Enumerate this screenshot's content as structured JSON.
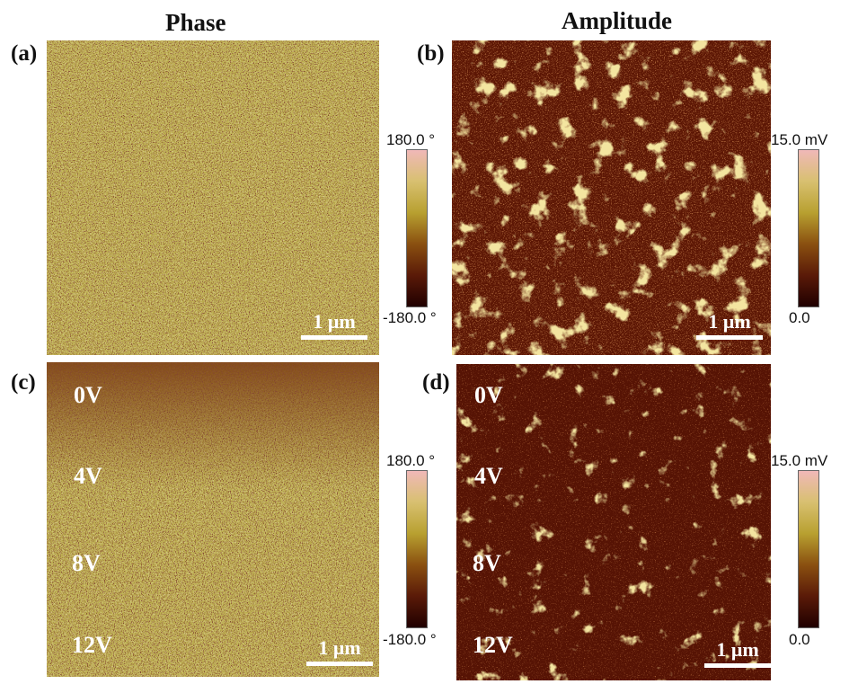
{
  "columns": {
    "phase_title": "Phase",
    "amplitude_title": "Amplitude"
  },
  "panels": {
    "a": {
      "label": "(a)",
      "scale": "1 μm"
    },
    "b": {
      "label": "(b)",
      "scale": "1 μm"
    },
    "c": {
      "label": "(c)",
      "scale": "1 μm",
      "voltages": [
        "0V",
        "4V",
        "8V",
        "12V"
      ]
    },
    "d": {
      "label": "(d)",
      "scale": "1 μm",
      "voltages": [
        "0V",
        "4V",
        "8V",
        "12V"
      ]
    }
  },
  "colorbars": {
    "phase": {
      "max": "180.0 °",
      "min": "-180.0 °"
    },
    "amplitude": {
      "max": "15.0 mV",
      "min": "0.0"
    }
  },
  "colors": {
    "phase_base": "#b8a848",
    "amplitude_base": "#5e1604",
    "bright": "#e8d080",
    "dark_speck": "#3a1008"
  }
}
